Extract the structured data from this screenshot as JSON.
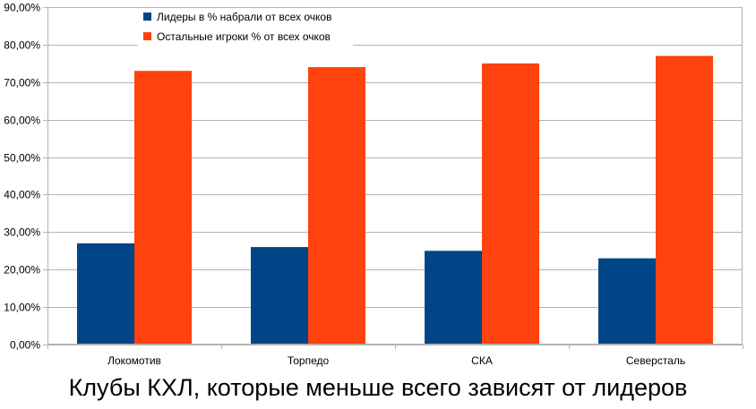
{
  "chart_data": {
    "type": "bar",
    "title": "Клубы КХЛ, которые меньше всего зависят от лидеров",
    "xlabel": "",
    "ylabel": "",
    "ylim": [
      0,
      90
    ],
    "y_tick_step": 10,
    "y_tick_format": "percent-2dp-comma",
    "grid": true,
    "legend_position": "top-left",
    "categories": [
      "Локомотив",
      "Торпедо",
      "СКА",
      "Северсталь"
    ],
    "series": [
      {
        "name": "Лидеры в % набрали от всех очков",
        "color": "#004586",
        "values": [
          27,
          26,
          25,
          23
        ]
      },
      {
        "name": "Остальные игроки % от всех очков",
        "color": "#ff420e",
        "values": [
          73,
          74,
          75,
          77
        ]
      }
    ]
  }
}
